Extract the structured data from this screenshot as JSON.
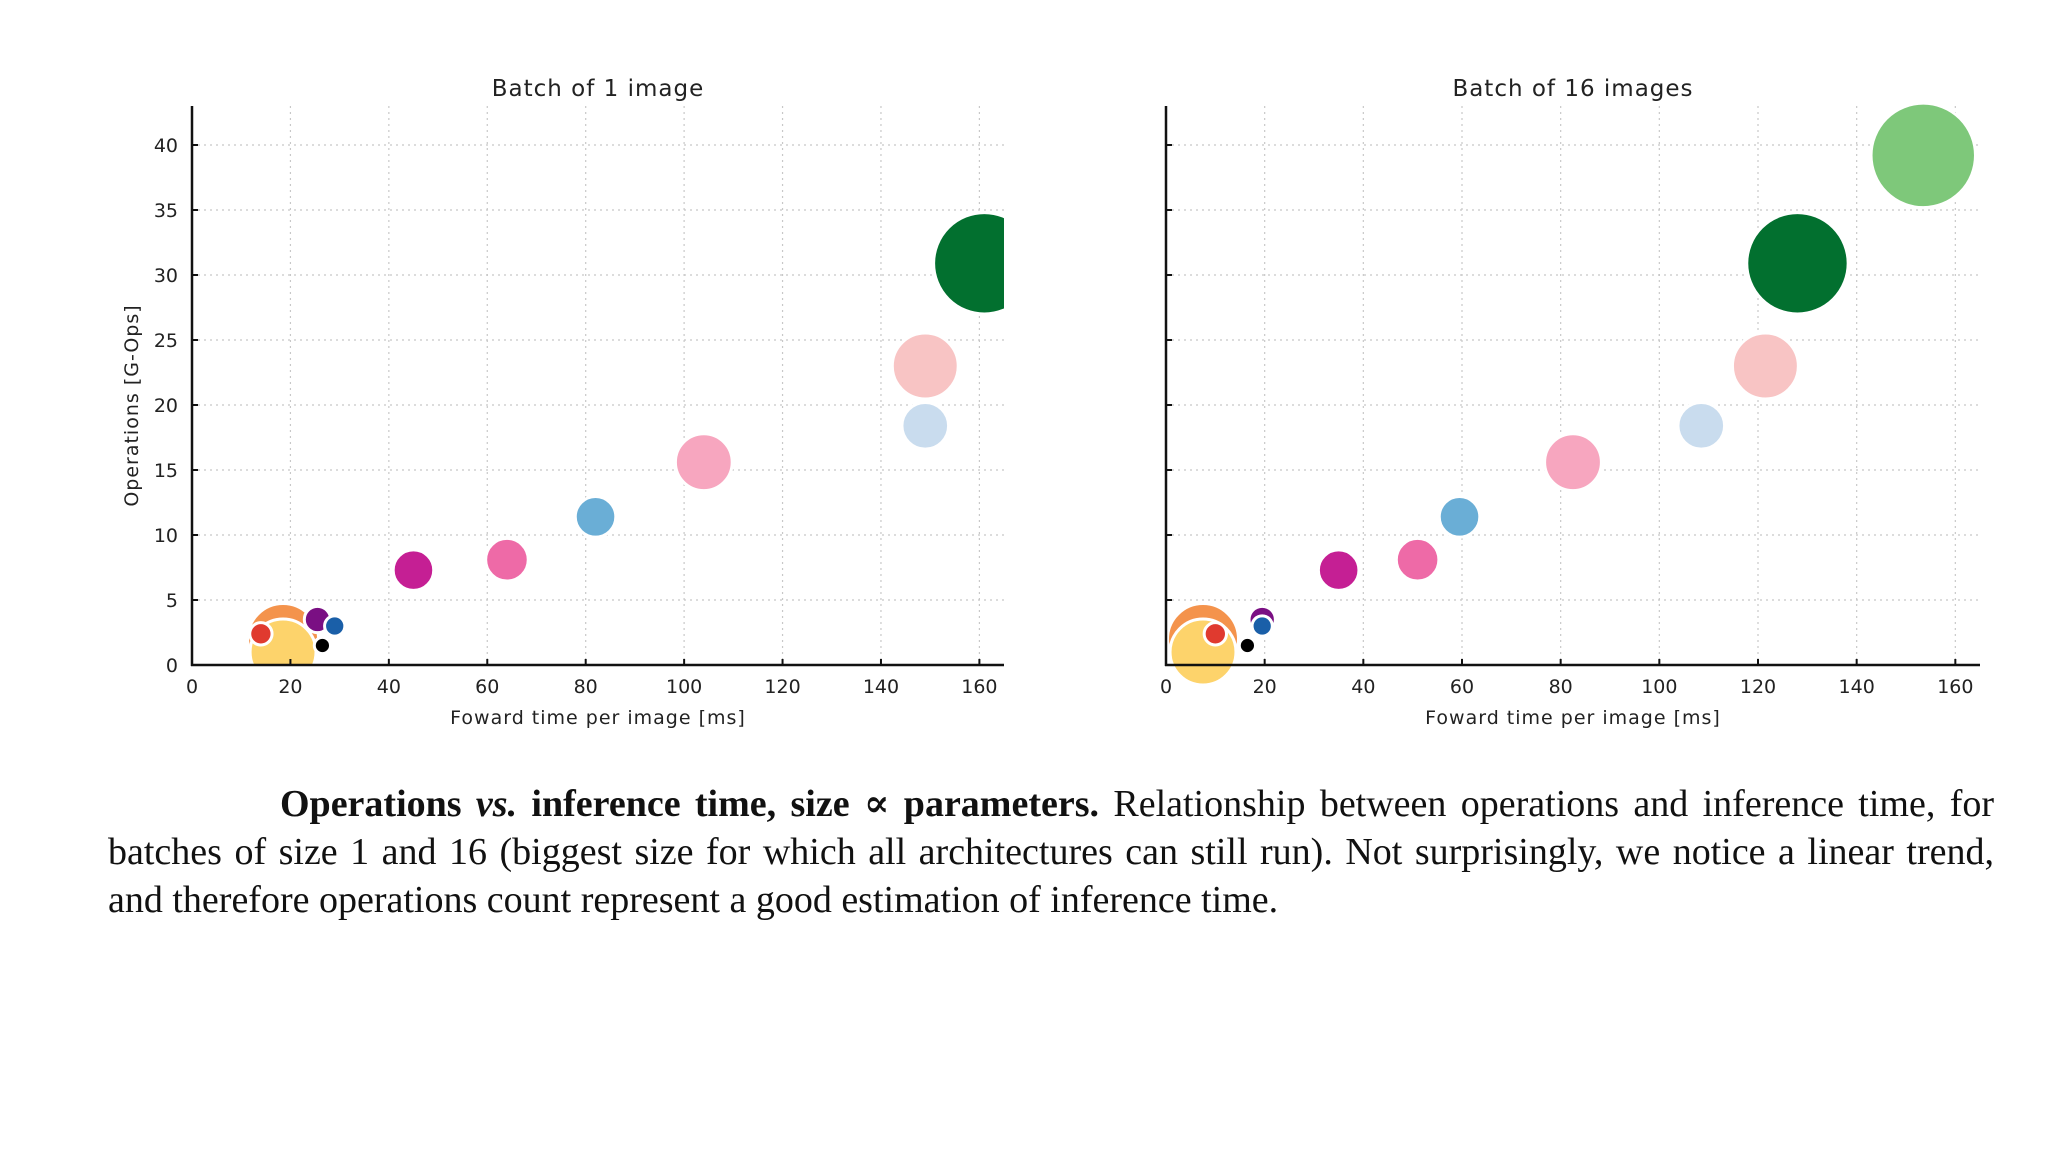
{
  "chart_data": [
    {
      "type": "scatter",
      "title": "Batch of 1 image",
      "xlabel": "Foward time per image [ms]",
      "ylabel": "Operations [G-Ops]",
      "xlim": [
        0,
        165
      ],
      "ylim": [
        0,
        43
      ],
      "xticks": [
        0,
        20,
        40,
        60,
        80,
        100,
        120,
        140,
        160
      ],
      "yticks": [
        0,
        5,
        10,
        15,
        20,
        25,
        30,
        35,
        40
      ],
      "grid": true,
      "points": [
        {
          "x": 18.5,
          "y": 2.0,
          "size": 7.0,
          "color": "#f4934c"
        },
        {
          "x": 18.5,
          "y": 1.0,
          "size": 6.5,
          "color": "#fdd36b"
        },
        {
          "x": 14,
          "y": 2.4,
          "size": 2.2,
          "color": "#e03a2f"
        },
        {
          "x": 25.5,
          "y": 3.5,
          "size": 2.6,
          "color": "#7a0f83"
        },
        {
          "x": 29,
          "y": 3.0,
          "size": 2.0,
          "color": "#1a5fa8"
        },
        {
          "x": 26.5,
          "y": 1.5,
          "size": 1.6,
          "color": "#000000"
        },
        {
          "x": 45,
          "y": 7.3,
          "size": 4.0,
          "color": "#c51f94"
        },
        {
          "x": 64,
          "y": 8.1,
          "size": 4.2,
          "color": "#ee6aa7"
        },
        {
          "x": 82,
          "y": 11.4,
          "size": 4.0,
          "color": "#6aaed6"
        },
        {
          "x": 104,
          "y": 15.6,
          "size": 5.6,
          "color": "#f7a6bf"
        },
        {
          "x": 149,
          "y": 18.4,
          "size": 4.6,
          "color": "#c9dcee"
        },
        {
          "x": 149,
          "y": 23.0,
          "size": 6.5,
          "color": "#f8c4c4"
        },
        {
          "x": 161,
          "y": 30.9,
          "size": 10.0,
          "color": "#02702f"
        }
      ]
    },
    {
      "type": "scatter",
      "title": "Batch of 16 images",
      "xlabel": "Foward time per image [ms]",
      "ylabel": "",
      "xlim": [
        0,
        165
      ],
      "ylim": [
        0,
        43
      ],
      "xticks": [
        0,
        20,
        40,
        60,
        80,
        100,
        120,
        140,
        160
      ],
      "yticks": [
        0,
        5,
        10,
        15,
        20,
        25,
        30,
        35,
        40
      ],
      "grid": true,
      "points": [
        {
          "x": 7.5,
          "y": 2.0,
          "size": 7.0,
          "color": "#f4934c"
        },
        {
          "x": 7.5,
          "y": 1.0,
          "size": 6.5,
          "color": "#fdd36b"
        },
        {
          "x": 10,
          "y": 2.4,
          "size": 2.2,
          "color": "#e03a2f"
        },
        {
          "x": 19.5,
          "y": 3.5,
          "size": 2.6,
          "color": "#7a0f83"
        },
        {
          "x": 19.5,
          "y": 3.0,
          "size": 2.0,
          "color": "#1a5fa8"
        },
        {
          "x": 16.5,
          "y": 1.5,
          "size": 1.6,
          "color": "#000000"
        },
        {
          "x": 35,
          "y": 7.3,
          "size": 4.0,
          "color": "#c51f94"
        },
        {
          "x": 51,
          "y": 8.1,
          "size": 4.2,
          "color": "#ee6aa7"
        },
        {
          "x": 59.5,
          "y": 11.4,
          "size": 4.0,
          "color": "#6aaed6"
        },
        {
          "x": 82.5,
          "y": 15.6,
          "size": 5.6,
          "color": "#f7a6bf"
        },
        {
          "x": 108.5,
          "y": 18.4,
          "size": 4.6,
          "color": "#c9dcee"
        },
        {
          "x": 121.5,
          "y": 23.0,
          "size": 6.5,
          "color": "#f8c4c4"
        },
        {
          "x": 128,
          "y": 30.9,
          "size": 10.0,
          "color": "#02702f"
        },
        {
          "x": 153.5,
          "y": 39.2,
          "size": 10.3,
          "color": "#7ec87a"
        }
      ]
    }
  ],
  "caption": {
    "bold_1": "Operations ",
    "italic": "vs.",
    "bold_2": " inference time, size ∝ parameters.",
    "text": " Relationship between operations and inference time, for batches of size 1 and 16 (biggest size for which all architectures can still run). Not surprisingly, we notice a linear trend, and therefore operations count represent a good estimation of inference time."
  }
}
